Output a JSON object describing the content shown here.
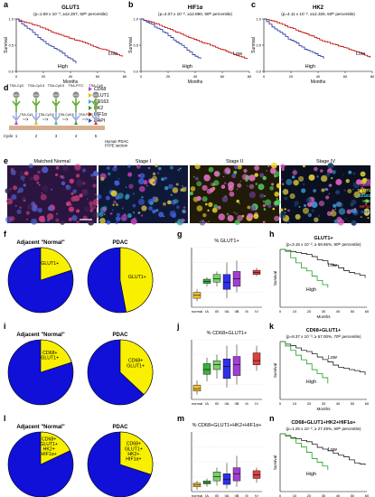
{
  "labels": {
    "a": "a",
    "b": "b",
    "c": "c",
    "d": "d",
    "e": "e",
    "f": "f",
    "g": "g",
    "h": "h",
    "i": "i",
    "j": "j",
    "k": "k",
    "l": "l",
    "m": "m",
    "n": "n"
  },
  "km_top": [
    {
      "title": "GLUT1",
      "subtitle": "(p=1.69 x 10⁻³, ≥12.207, 50ᵗʰ percentile)",
      "low": "Low",
      "high": "High",
      "xlabel": "Months",
      "ylabel": "Survival"
    },
    {
      "title": "HIF1α",
      "subtitle": "(p=2.07 x 10⁻², ≥12.890, 90ᵗʰ percentile)",
      "low": "Low",
      "high": "High",
      "xlabel": "Months",
      "ylabel": "Survival"
    },
    {
      "title": "HK2",
      "subtitle": "(p=4.11 x 10⁻², ≥12.326, 50ᵗʰ percentile)",
      "low": "Low",
      "high": "High",
      "xlabel": "Months",
      "ylabel": "Survival"
    }
  ],
  "km_axis": {
    "x_ticks": [
      "0",
      "20",
      "40",
      "60",
      "80"
    ],
    "y_ticks": [
      "0.0",
      "0.5",
      "1.0"
    ]
  },
  "panel_d": {
    "markers": [
      {
        "name": "CD68",
        "color": "#c040c0"
      },
      {
        "name": "GLUT1",
        "color": "#e0c000"
      },
      {
        "name": "CD163",
        "color": "#40b0c0"
      },
      {
        "name": "HK2",
        "color": "#30a030"
      },
      {
        "name": "HIF1α",
        "color": "#d03030"
      },
      {
        "name": "DAPI",
        "color": "#3050d0"
      }
    ],
    "top_labels": [
      "TSA-Cy3",
      "TSA-Cy3.5",
      "TSA-Cy5.5",
      "TSA-FITC",
      "TSA-Cy5"
    ],
    "bottom_labels": [
      "TSA-Cy3",
      "TSA-Cy3.5",
      "TSA-Cy5.5",
      "TSA-FITC"
    ],
    "cycle_label": "Cycle",
    "cycles": [
      "1",
      "2",
      "3",
      "4",
      "5"
    ],
    "hrp": "HRP",
    "sample_label": "Human PDAC\nFFPE section"
  },
  "panel_e": {
    "stages": [
      "Matched Normal",
      "Stage I",
      "Stage II",
      "Stage IV"
    ],
    "legend": [
      {
        "name": "CD68",
        "color": "#e040e0"
      },
      {
        "name": "GLUT1",
        "color": "#f0e020"
      },
      {
        "name": "CD163",
        "color": "#40d0e0"
      },
      {
        "name": "HK2",
        "color": "#40d040"
      },
      {
        "name": "HIF1α",
        "color": "#e03030"
      },
      {
        "name": "DAPI",
        "color": "#4060ff"
      }
    ]
  },
  "rows": [
    {
      "pie_left_title": "Adjacent \"Normal\"",
      "pie_right_title": "PDAC",
      "pie_left_label": "GLUT1+",
      "pie_right_label": "GLUT1+",
      "pie_left_frac": 0.2,
      "pie_right_frac": 0.47,
      "box_title": "% GLUT1+",
      "box_cats": [
        "normal",
        "IA",
        "IB",
        "IIA",
        "IIB",
        "III",
        "IV"
      ],
      "km_title": "GLUT1+",
      "km_sub": "(p=3.15 x 10⁻², ≥ 69.65%, 80ᵗʰ percentile)",
      "low": "Low",
      "high": "High"
    },
    {
      "pie_left_title": "Adjacent \"Normal\"",
      "pie_right_title": "PDAC",
      "pie_left_label": "CD68+\nGLUT1+",
      "pie_right_label": "CD68+\nGLUT1+",
      "pie_left_frac": 0.2,
      "pie_right_frac": 0.37,
      "box_title": "% CD68+GLUT1+",
      "box_cats": [
        "normal",
        "IA",
        "IB",
        "IIA",
        "IIB",
        "III",
        "IV"
      ],
      "km_title": "CD68+GLUT1+",
      "km_sub": "(p=9.37 x 10⁻³, ≥ 67.00%, 70ᵗʰ percentile)",
      "low": "Low",
      "high": "High"
    },
    {
      "pie_left_title": "Adjacent \"Normal\"",
      "pie_right_title": "PDAC",
      "pie_left_label": "CD68+\nGLUT1+\nHK2+\nHIF1α+",
      "pie_right_label": "CD68+\nGLUT1+\nHK2+\nHIF1α+",
      "pie_left_frac": 0.18,
      "pie_right_frac": 0.3,
      "box_title": "% CD68+GLUT1+HK2+HIF1α+",
      "box_cats": [
        "normal",
        "IA",
        "IB",
        "IIA",
        "IIB",
        "III",
        "IV"
      ],
      "km_title": "CD68+GLUT1+HK2+HIF1α+",
      "km_sub": "(p=1.25 x 10⁻², ≥ 27.49%, 60ᵗʰ percentile)",
      "low": "Low",
      "high": "High"
    }
  ],
  "km_small_axis": {
    "x_ticks": [
      "0",
      "10",
      "20",
      "30",
      "40",
      "50",
      "60"
    ],
    "xlabel": "Months",
    "ylabel": "Survival"
  },
  "colors": {
    "pie_blue": "#1010d8",
    "pie_yellow": "#f8f000",
    "low_line": "#c00000",
    "high_line": "#1a2a9a",
    "km_low": "#222222",
    "km_high": "#22a022"
  }
}
